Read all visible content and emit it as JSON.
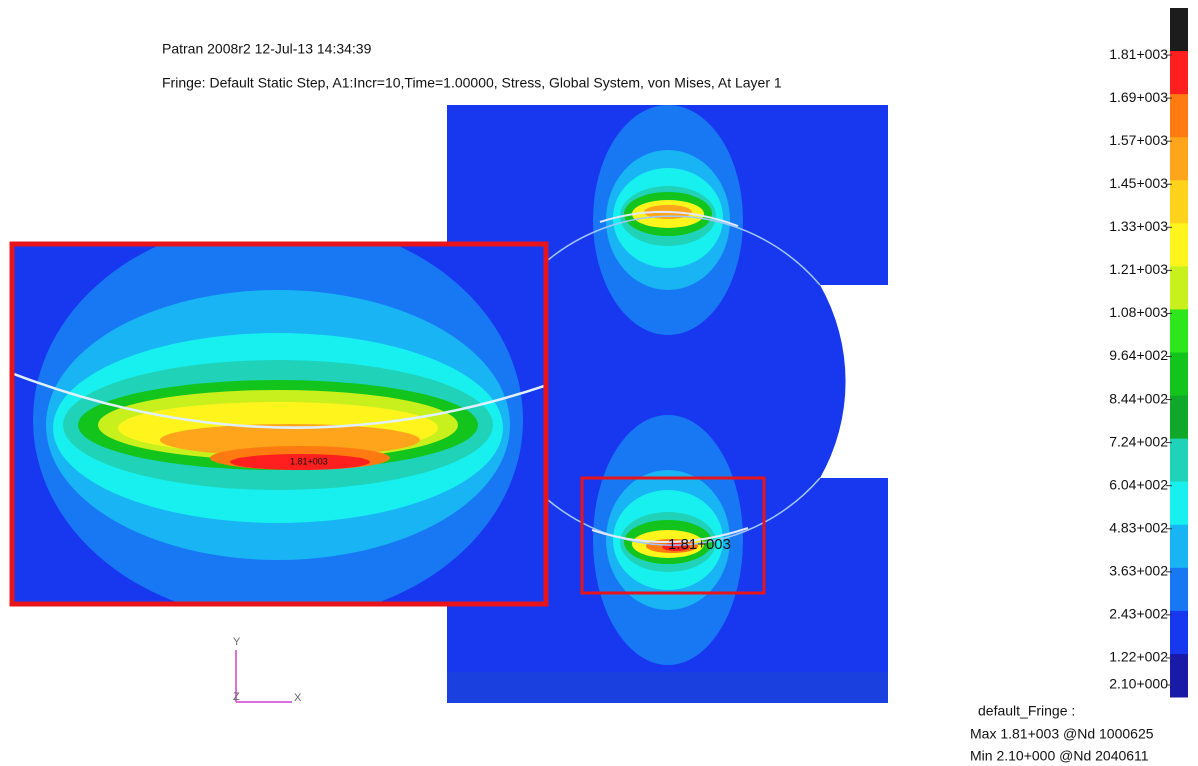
{
  "header": {
    "title": "Patran 2008r2 12-Jul-13 14:34:39",
    "subtitle": "Fringe: Default Static Step, A1:Incr=10,Time=1.00000, Stress, Global System, von Mises, At Layer 1"
  },
  "legend": {
    "labels": [
      "1.81+003",
      "1.69+003",
      "1.57+003",
      "1.45+003",
      "1.33+003",
      "1.21+003",
      "1.08+003",
      "9.64+002",
      "8.44+002",
      "7.24+002",
      "6.04+002",
      "4.83+002",
      "3.63+002",
      "2.43+002",
      "1.22+002",
      "2.10+000"
    ],
    "colors": [
      "#1c1c1c",
      "#ff1f1f",
      "#ff7a10",
      "#ffa51c",
      "#ffd21c",
      "#fff41c",
      "#c8f01c",
      "#2ee61c",
      "#12c41c",
      "#10a82a",
      "#20d2b8",
      "#18f0f0",
      "#18b4f4",
      "#1878f4",
      "#1838f0",
      "#1a1aa8"
    ]
  },
  "annotations": {
    "max_marker": "1.81+003",
    "inset_marker": "1.81+003"
  },
  "triad": {
    "y": "Y",
    "z": "Z",
    "x": "X"
  },
  "footer": {
    "name": "default_Fringe :",
    "max": "Max 1.81+003 @Nd 1000625",
    "min": "Min 2.10+000 @Nd 2040611"
  }
}
